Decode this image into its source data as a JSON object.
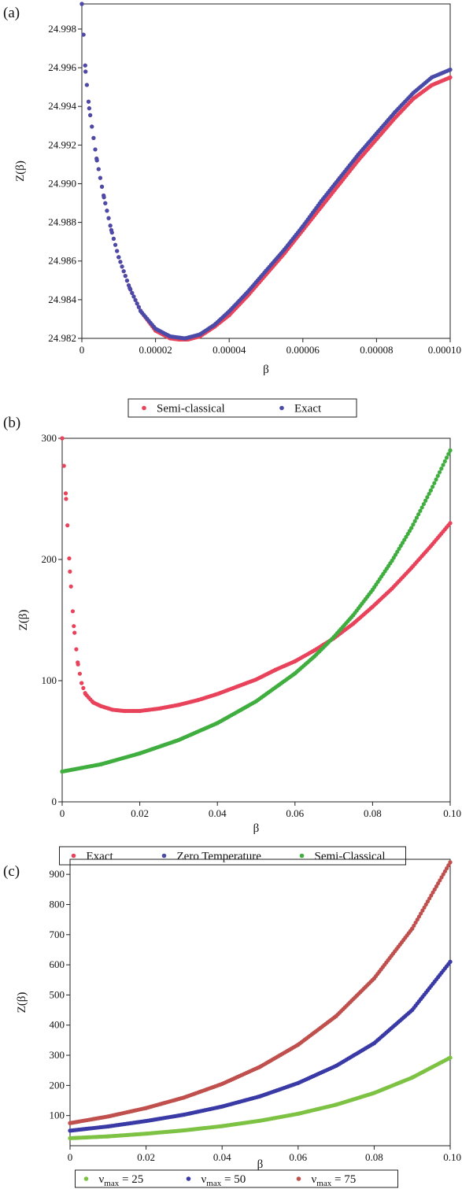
{
  "chart_data": [
    {
      "type": "scatter",
      "panel_label": "(a)",
      "xlabel": "β",
      "ylabel": "Z(β)",
      "xlim": [
        0,
        0.0001
      ],
      "ylim": [
        24.982,
        24.9993
      ],
      "x_ticks": [
        0,
        2e-05,
        4e-05,
        6e-05,
        8e-05,
        0.0001
      ],
      "x_tick_labels": [
        "0",
        "0.00002",
        "0.00004",
        "0.00006",
        "0.00008",
        "0.00010"
      ],
      "y_ticks": [
        24.982,
        24.984,
        24.986,
        24.988,
        24.99,
        24.992,
        24.994,
        24.996,
        24.998
      ],
      "y_tick_labels": [
        "24.982",
        "24.984",
        "24.986",
        "24.988",
        "24.990",
        "24.992",
        "24.994",
        "24.996",
        "24.998"
      ],
      "grid": false,
      "legend_position": "bottom",
      "series": [
        {
          "name": "Semi-classical",
          "color": "#e8435b",
          "x": [
            0,
            1e-06,
            2e-06,
            4e-06,
            6e-06,
            8e-06,
            1e-05,
            1.3e-05,
            1.6e-05,
            2e-05,
            2.4e-05,
            2.8e-05,
            3.2e-05,
            3.6e-05,
            4e-05,
            4.5e-05,
            5e-05,
            5.5e-05,
            6e-05,
            6.5e-05,
            7e-05,
            7.5e-05,
            8e-05,
            8.5e-05,
            9e-05,
            9.5e-05,
            0.0001
          ],
          "y": [
            24.9993,
            24.9958,
            24.9939,
            24.9913,
            24.9893,
            24.9876,
            24.9862,
            24.9846,
            24.9834,
            24.9824,
            24.982,
            24.9819,
            24.9821,
            24.9826,
            24.9832,
            24.9842,
            24.9853,
            24.9864,
            24.9876,
            24.9888,
            24.99,
            24.9912,
            24.9923,
            24.9934,
            24.9944,
            24.9951,
            24.9955
          ]
        },
        {
          "name": "Exact",
          "color": "#4a4aa8",
          "x": [
            0,
            1e-06,
            2e-06,
            4e-06,
            6e-06,
            8e-06,
            1e-05,
            1.3e-05,
            1.6e-05,
            2e-05,
            2.4e-05,
            2.8e-05,
            3.2e-05,
            3.6e-05,
            4e-05,
            4.5e-05,
            5e-05,
            5.5e-05,
            6e-05,
            6.5e-05,
            7e-05,
            7.5e-05,
            8e-05,
            8.5e-05,
            9e-05,
            9.5e-05,
            0.0001
          ],
          "y": [
            24.9993,
            24.9958,
            24.9939,
            24.9913,
            24.9893,
            24.9876,
            24.9862,
            24.9846,
            24.9834,
            24.9825,
            24.9821,
            24.982,
            24.9822,
            24.9827,
            24.9834,
            24.9844,
            24.9855,
            24.9866,
            24.9878,
            24.9891,
            24.9903,
            24.9915,
            24.9926,
            24.9937,
            24.9947,
            24.9955,
            24.9959
          ]
        }
      ]
    },
    {
      "type": "scatter",
      "panel_label": "(b)",
      "xlabel": "β",
      "ylabel": "Z(β)",
      "xlim": [
        0,
        0.1
      ],
      "ylim": [
        0,
        300
      ],
      "x_ticks": [
        0,
        0.02,
        0.04,
        0.06,
        0.08,
        0.1
      ],
      "x_tick_labels": [
        "0",
        "0.02",
        "0.04",
        "0.06",
        "0.08",
        "0.10"
      ],
      "y_ticks": [
        0,
        100,
        200,
        300
      ],
      "y_tick_labels": [
        "0",
        "100",
        "200",
        "300"
      ],
      "grid": false,
      "legend_position": "bottom",
      "series": [
        {
          "name": "Exact",
          "color": "#e8435b",
          "x": [
            0,
            0.001,
            0.002,
            0.003,
            0.004,
            0.005,
            0.006,
            0.008,
            0.01,
            0.013,
            0.016,
            0.02,
            0.025,
            0.03,
            0.035,
            0.04,
            0.045,
            0.05,
            0.055,
            0.06,
            0.065,
            0.07,
            0.075,
            0.08,
            0.085,
            0.09,
            0.095,
            0.1
          ],
          "y": [
            300,
            250,
            190,
            145,
            115,
            98,
            89,
            82,
            79,
            76,
            75,
            75,
            77,
            80,
            84,
            89,
            95,
            101,
            109,
            116,
            125,
            135,
            147,
            161,
            176,
            193,
            211,
            230
          ]
        },
        {
          "name": "Zero Temperature",
          "color": "#4a4aa8",
          "x": [],
          "y": []
        },
        {
          "name": "Semi-Classical",
          "color": "#3fae3f",
          "x": [
            0,
            0.01,
            0.02,
            0.03,
            0.04,
            0.05,
            0.06,
            0.065,
            0.07,
            0.075,
            0.08,
            0.085,
            0.09,
            0.095,
            0.1
          ],
          "y": [
            25,
            31,
            40,
            51,
            65,
            83,
            106,
            120,
            136,
            154,
            175,
            199,
            226,
            257,
            290
          ]
        }
      ]
    },
    {
      "type": "scatter",
      "panel_label": "(c)",
      "xlabel": "β",
      "ylabel": "Z(β)",
      "xlim": [
        0,
        0.1
      ],
      "ylim": [
        0,
        950
      ],
      "x_ticks": [
        0,
        0.02,
        0.04,
        0.06,
        0.08,
        0.1
      ],
      "x_tick_labels": [
        "0",
        "0.02",
        "0.04",
        "0.06",
        "0.08",
        "0.10"
      ],
      "y_ticks": [
        100,
        200,
        300,
        400,
        500,
        600,
        700,
        800,
        900
      ],
      "y_tick_labels": [
        "100",
        "200",
        "300",
        "400",
        "500",
        "600",
        "700",
        "800",
        "900"
      ],
      "grid": false,
      "legend_position": "bottom",
      "series": [
        {
          "name": "ν_max = 25",
          "name_main": "ν",
          "name_sub": "max",
          "name_rest": " = 25",
          "color": "#7dc243",
          "x": [
            0,
            0.01,
            0.02,
            0.03,
            0.04,
            0.05,
            0.06,
            0.07,
            0.08,
            0.09,
            0.1
          ],
          "y": [
            25,
            31,
            40,
            51,
            65,
            83,
            106,
            136,
            175,
            226,
            292
          ]
        },
        {
          "name": "ν_max = 50",
          "name_main": "ν",
          "name_sub": "max",
          "name_rest": " = 50",
          "color": "#3a3aa6",
          "x": [
            0,
            0.01,
            0.02,
            0.03,
            0.04,
            0.05,
            0.06,
            0.07,
            0.08,
            0.09,
            0.1
          ],
          "y": [
            50,
            64,
            82,
            103,
            130,
            164,
            208,
            265,
            340,
            450,
            610
          ]
        },
        {
          "name": "ν_max = 75",
          "name_main": "ν",
          "name_sub": "max",
          "name_rest": " = 75",
          "color": "#c0504d",
          "x": [
            0,
            0.01,
            0.02,
            0.03,
            0.04,
            0.05,
            0.06,
            0.07,
            0.08,
            0.09,
            0.1
          ],
          "y": [
            75,
            97,
            125,
            160,
            205,
            262,
            335,
            430,
            555,
            720,
            940
          ]
        }
      ]
    }
  ]
}
